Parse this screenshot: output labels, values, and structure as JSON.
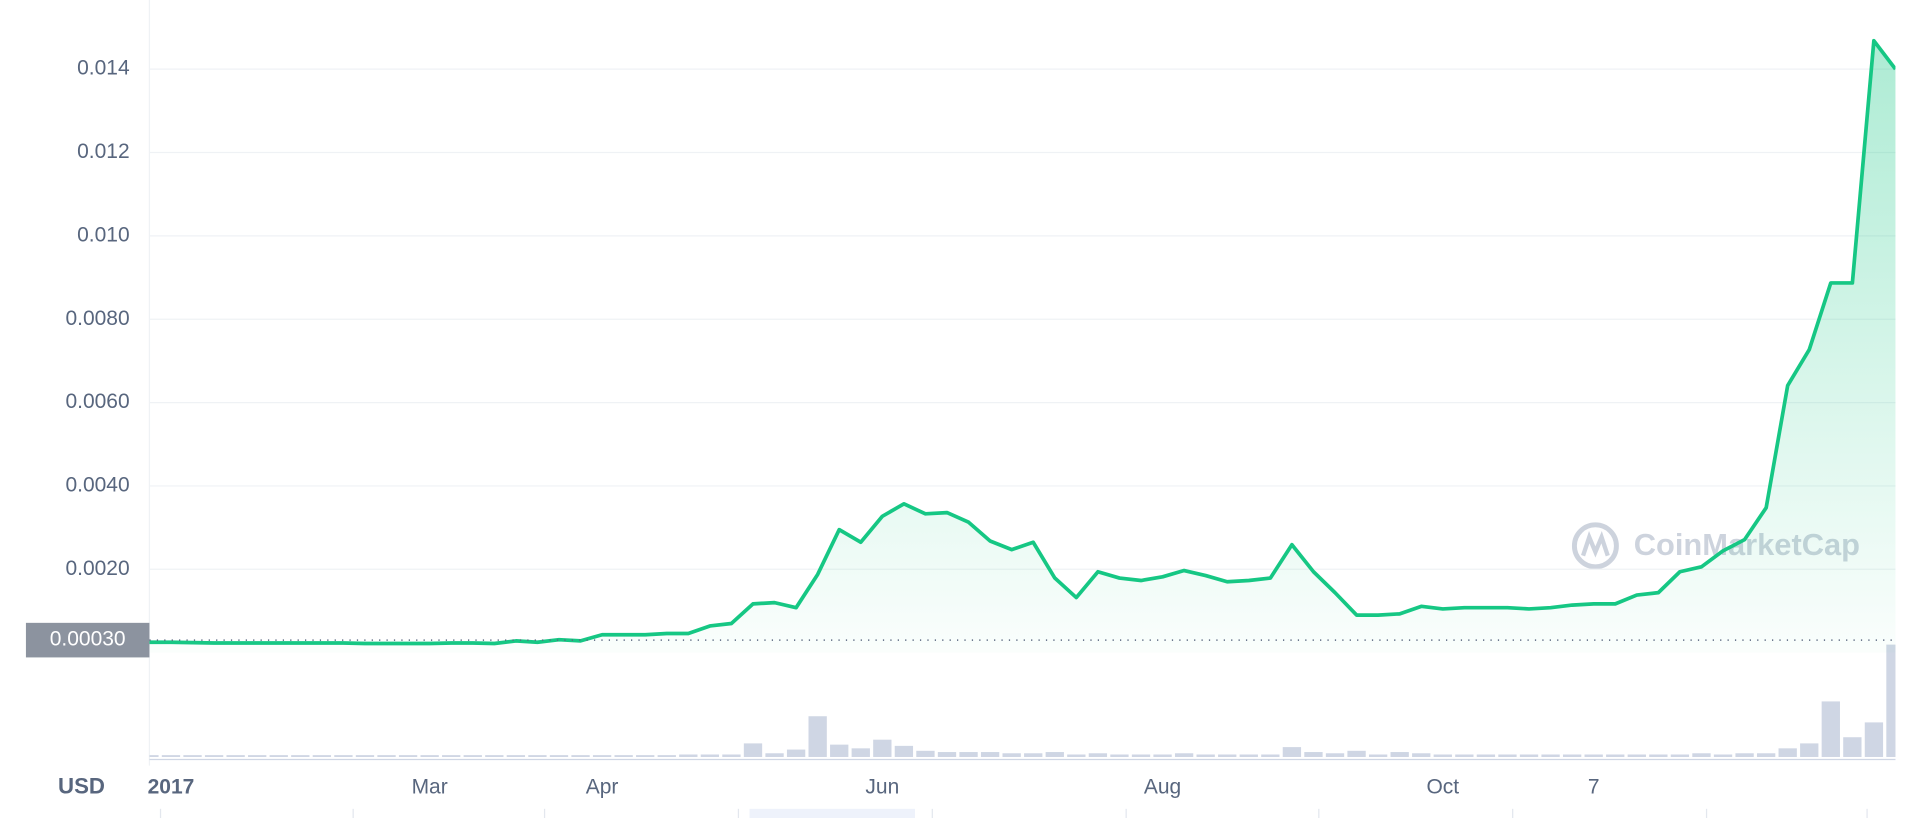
{
  "chart_data": {
    "type": "line",
    "currency": "USD",
    "watermark": "CoinMarketCap",
    "categories": [
      null,
      "2017",
      null,
      null,
      null,
      null,
      null,
      null,
      null,
      null,
      null,
      null,
      null,
      "Mar",
      null,
      null,
      null,
      null,
      null,
      null,
      null,
      "Apr",
      null,
      null,
      null,
      null,
      null,
      null,
      null,
      null,
      null,
      null,
      null,
      null,
      "Jun",
      null,
      null,
      null,
      null,
      null,
      null,
      null,
      null,
      null,
      null,
      null,
      null,
      "Aug",
      null,
      null,
      null,
      null,
      null,
      null,
      null,
      null,
      null,
      null,
      null,
      null,
      "Oct",
      null,
      null,
      null,
      null,
      null,
      null,
      "7",
      null,
      null,
      null,
      null,
      null,
      null,
      null,
      null,
      null,
      null,
      null,
      null,
      null,
      null
    ],
    "series": [
      {
        "name": "Price",
        "color": "#16c784",
        "values": [
          0.00025,
          0.00025,
          0.00024,
          0.00023,
          0.00023,
          0.00023,
          0.00023,
          0.00023,
          0.00023,
          0.00023,
          0.00022,
          0.00022,
          0.00022,
          0.00022,
          0.00023,
          0.00023,
          0.00022,
          0.00028,
          0.00025,
          0.00031,
          0.00028,
          0.00043,
          0.00043,
          0.00043,
          0.00046,
          0.00046,
          0.00064,
          0.0007,
          0.00117,
          0.0012,
          0.00108,
          0.00188,
          0.00295,
          0.00265,
          0.00327,
          0.00357,
          0.00333,
          0.00336,
          0.00313,
          0.00268,
          0.00247,
          0.00265,
          0.00179,
          0.00132,
          0.00194,
          0.00179,
          0.00173,
          0.00182,
          0.00197,
          0.00185,
          0.0017,
          0.00173,
          0.00179,
          0.00259,
          0.00194,
          0.00144,
          0.0009,
          0.0009,
          0.00093,
          0.00111,
          0.00105,
          0.00108,
          0.00108,
          0.00108,
          0.00105,
          0.00108,
          0.00114,
          0.00117,
          0.00117,
          0.00138,
          0.00144,
          0.00194,
          0.00206,
          0.00244,
          0.00271,
          0.00348,
          0.00641,
          0.00727,
          0.00887,
          0.00887,
          0.01468,
          0.014
        ]
      },
      {
        "name": "Volume",
        "color": "#cfd6e4",
        "values": [
          1.5,
          1.5,
          1.5,
          1.5,
          1.5,
          1.5,
          1.5,
          1.5,
          1.5,
          1.5,
          1.5,
          1.5,
          1.5,
          1.5,
          1.5,
          1.5,
          1.5,
          1.5,
          1.5,
          1.5,
          1.5,
          1.5,
          1.5,
          1.5,
          1.5,
          2,
          2,
          2,
          11,
          3,
          6,
          33,
          10,
          7,
          14,
          9,
          5,
          4,
          4,
          4,
          3,
          3,
          4,
          2,
          3,
          2,
          2,
          2,
          3,
          2,
          2,
          2,
          2,
          8,
          4,
          3,
          5,
          2,
          4,
          3,
          2,
          2,
          2,
          2,
          2,
          2,
          2,
          2,
          2,
          2,
          2,
          2,
          3,
          2,
          3,
          3,
          7,
          11,
          45,
          16,
          28,
          91
        ]
      }
    ],
    "ylim": [
      0,
      0.0156
    ],
    "yticks": [
      {
        "value": 0.002,
        "label": "0.0020"
      },
      {
        "value": 0.004,
        "label": "0.0040"
      },
      {
        "value": 0.006,
        "label": "0.0060"
      },
      {
        "value": 0.008,
        "label": "0.0080"
      },
      {
        "value": 0.01,
        "label": "0.010"
      },
      {
        "value": 0.012,
        "label": "0.012"
      },
      0.014
    ],
    "reference_line": {
      "value": 0.0003,
      "label": "0.00030"
    },
    "grid": true
  }
}
